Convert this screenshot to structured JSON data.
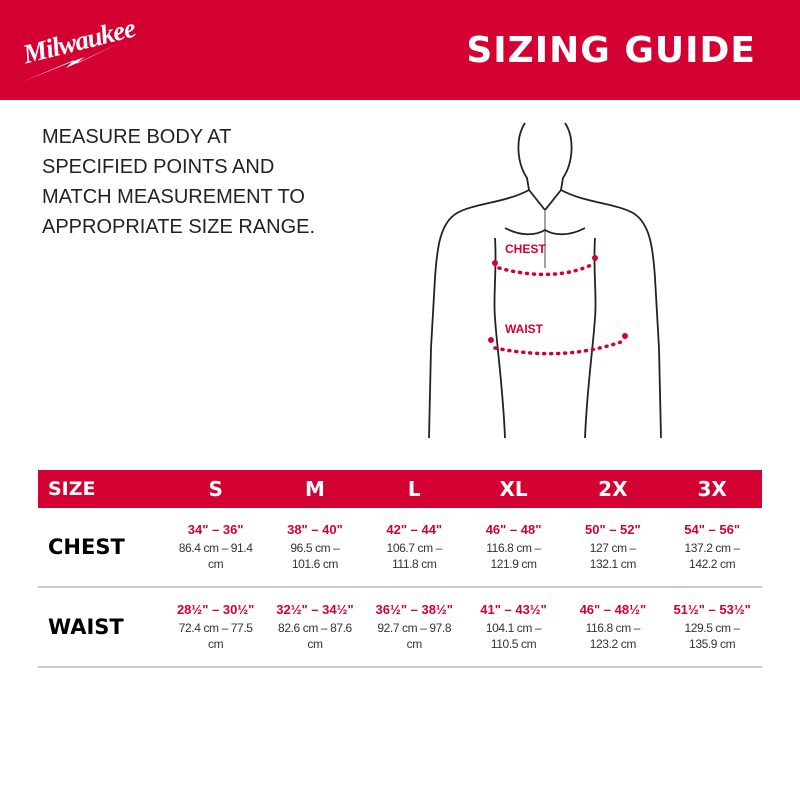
{
  "header": {
    "brand": "Milwaukee",
    "title": "SIZING GUIDE",
    "bg_color": "#d50032"
  },
  "instructions": "MEASURE BODY AT SPECIFIED POINTS AND MATCH MEASUREMENT TO APPROPRIATE SIZE RANGE.",
  "figure": {
    "chest_label": "CHEST",
    "waist_label": "WAIST"
  },
  "table": {
    "size_header": "SIZE",
    "sizes": [
      "S",
      "M",
      "L",
      "XL",
      "2X",
      "3X"
    ],
    "rows": [
      {
        "label": "CHEST",
        "cells": [
          {
            "in": "34\" – 36\"",
            "cm": "86.4 cm – 91.4 cm"
          },
          {
            "in": "38\" – 40\"",
            "cm": "96.5 cm – 101.6 cm"
          },
          {
            "in": "42\" – 44\"",
            "cm": "106.7 cm – 111.8 cm"
          },
          {
            "in": "46\" – 48\"",
            "cm": "116.8 cm – 121.9 cm"
          },
          {
            "in": "50\" – 52\"",
            "cm": "127 cm – 132.1 cm"
          },
          {
            "in": "54\" – 56\"",
            "cm": "137.2 cm – 142.2 cm"
          }
        ]
      },
      {
        "label": "WAIST",
        "cells": [
          {
            "in": "28½\" – 30½\"",
            "cm": "72.4 cm – 77.5 cm"
          },
          {
            "in": "32½\" – 34½\"",
            "cm": "82.6 cm – 87.6 cm"
          },
          {
            "in": "36½\" – 38½\"",
            "cm": "92.7 cm – 97.8 cm"
          },
          {
            "in": "41\" – 43½\"",
            "cm": "104.1 cm – 110.5 cm"
          },
          {
            "in": "46\" – 48½\"",
            "cm": "116.8 cm – 123.2 cm"
          },
          {
            "in": "51½\" – 53½\"",
            "cm": "129.5 cm – 135.9 cm"
          }
        ]
      }
    ]
  }
}
